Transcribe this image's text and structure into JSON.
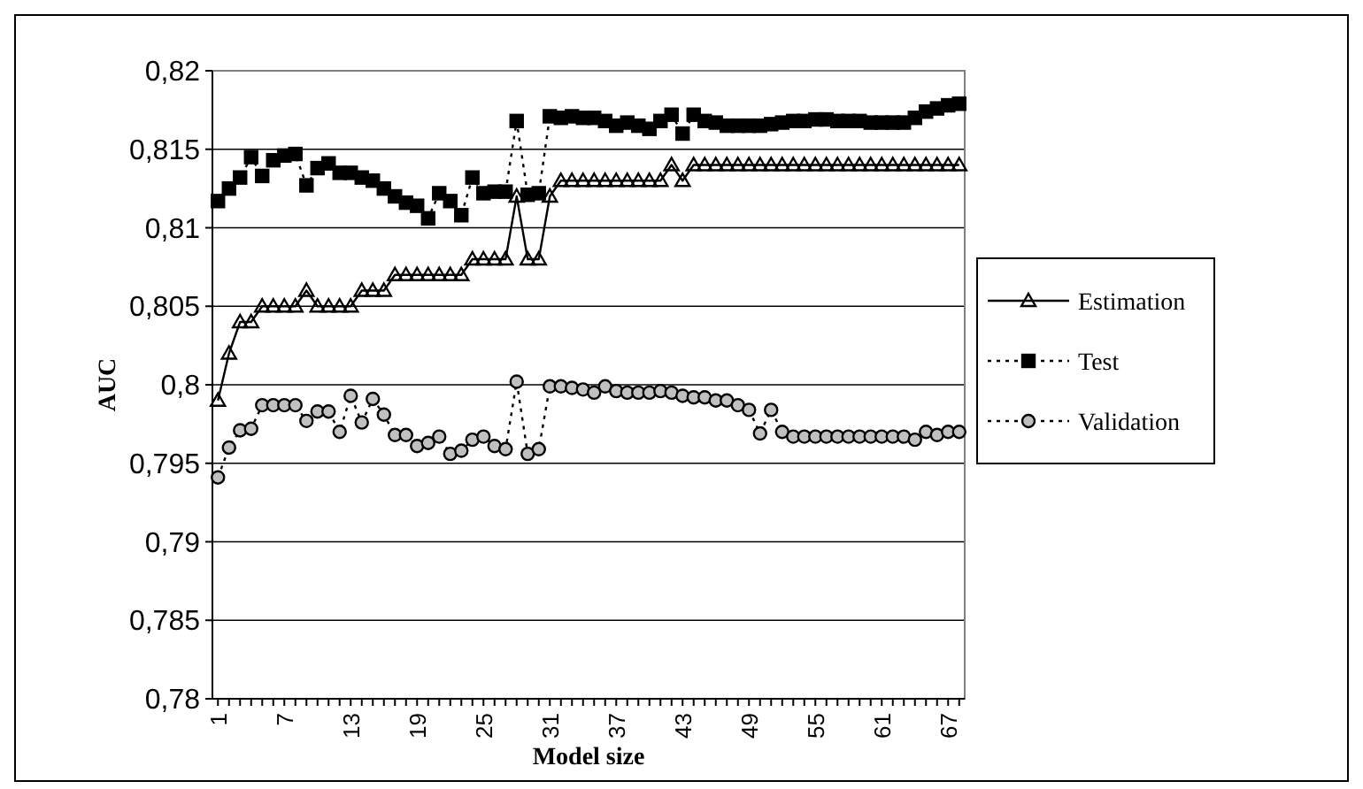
{
  "chart_data": {
    "type": "line",
    "xlabel": "Model size",
    "ylabel": "AUC",
    "categories": [
      "1",
      null,
      null,
      null,
      null,
      null,
      "7",
      null,
      null,
      null,
      null,
      null,
      "13",
      null,
      null,
      null,
      null,
      null,
      "19",
      null,
      null,
      null,
      null,
      null,
      "25",
      null,
      null,
      null,
      null,
      null,
      "31",
      null,
      null,
      null,
      null,
      null,
      "37",
      null,
      null,
      null,
      null,
      null,
      "43",
      null,
      null,
      null,
      null,
      null,
      "49",
      null,
      null,
      null,
      null,
      null,
      "55",
      null,
      null,
      null,
      null,
      null,
      "61",
      null,
      null,
      null,
      null,
      null,
      "67",
      null
    ],
    "ylim": [
      0.78,
      0.82
    ],
    "yticks": [
      {
        "value": 0.78,
        "label": "0,78"
      },
      {
        "value": 0.785,
        "label": "0,785"
      },
      {
        "value": 0.79,
        "label": "0,79"
      },
      {
        "value": 0.795,
        "label": "0,795"
      },
      {
        "value": 0.8,
        "label": "0,8"
      },
      {
        "value": 0.805,
        "label": "0,805"
      },
      {
        "value": 0.81,
        "label": "0,81"
      },
      {
        "value": 0.815,
        "label": "0,815"
      },
      {
        "value": 0.82,
        "label": "0,82"
      }
    ],
    "grid": "y",
    "legend": "right",
    "series": [
      {
        "name": "Estimation",
        "color": "#000000",
        "marker": "triangle",
        "line_style": "solid",
        "values": [
          0.799,
          0.802,
          0.804,
          0.804,
          0.805,
          0.805,
          0.805,
          0.805,
          0.806,
          0.805,
          0.805,
          0.805,
          0.805,
          0.806,
          0.806,
          0.806,
          0.807,
          0.807,
          0.807,
          0.807,
          0.807,
          0.807,
          0.807,
          0.808,
          0.808,
          0.808,
          0.808,
          0.812,
          0.808,
          0.808,
          0.812,
          0.813,
          0.813,
          0.813,
          0.813,
          0.813,
          0.813,
          0.813,
          0.813,
          0.813,
          0.813,
          0.814,
          0.813,
          0.814,
          0.814,
          0.814,
          0.814,
          0.814,
          0.814,
          0.814,
          0.814,
          0.814,
          0.814,
          0.814,
          0.814,
          0.814,
          0.814,
          0.814,
          0.814,
          0.814,
          0.814,
          0.814,
          0.814,
          0.814,
          0.814,
          0.814,
          0.814,
          0.814
        ]
      },
      {
        "name": "Test",
        "color": "#000000",
        "marker": "square",
        "line_style": "dotted",
        "values": [
          0.8117,
          0.8125,
          0.8132,
          0.8145,
          0.8133,
          0.8143,
          0.8146,
          0.8147,
          0.8127,
          0.8138,
          0.8141,
          0.8135,
          0.8135,
          0.8132,
          0.813,
          0.8125,
          0.812,
          0.8116,
          0.8114,
          0.8106,
          0.8122,
          0.8117,
          0.8108,
          0.8132,
          0.8122,
          0.8123,
          0.8123,
          0.8168,
          0.8121,
          0.8122,
          0.8171,
          0.817,
          0.8171,
          0.817,
          0.817,
          0.8168,
          0.8165,
          0.8167,
          0.8165,
          0.8163,
          0.8168,
          0.8172,
          0.816,
          0.8172,
          0.8168,
          0.8167,
          0.8165,
          0.8165,
          0.8165,
          0.8165,
          0.8166,
          0.8167,
          0.8168,
          0.8168,
          0.8169,
          0.8169,
          0.8168,
          0.8168,
          0.8168,
          0.8167,
          0.8167,
          0.8167,
          0.8167,
          0.817,
          0.8174,
          0.8176,
          0.8178,
          0.8179
        ]
      },
      {
        "name": "Validation",
        "color": "#c0c0c0",
        "marker": "circle",
        "line_style": "dotted",
        "values": [
          0.7941,
          0.796,
          0.7971,
          0.7972,
          0.7987,
          0.7987,
          0.7987,
          0.7987,
          0.7977,
          0.7983,
          0.7983,
          0.797,
          0.7993,
          0.7976,
          0.7991,
          0.7981,
          0.7968,
          0.7968,
          0.7961,
          0.7963,
          0.7967,
          0.7956,
          0.7958,
          0.7965,
          0.7967,
          0.7961,
          0.7959,
          0.8002,
          0.7956,
          0.7959,
          0.7999,
          0.7999,
          0.7998,
          0.7997,
          0.7995,
          0.7999,
          0.7996,
          0.7995,
          0.7995,
          0.7995,
          0.7996,
          0.7995,
          0.7993,
          0.7992,
          0.7992,
          0.799,
          0.799,
          0.7987,
          0.7984,
          0.7969,
          0.7984,
          0.797,
          0.7967,
          0.7967,
          0.7967,
          0.7967,
          0.7967,
          0.7967,
          0.7967,
          0.7967,
          0.7967,
          0.7967,
          0.7967,
          0.7965,
          0.797,
          0.7968,
          0.797,
          0.797
        ]
      }
    ]
  }
}
